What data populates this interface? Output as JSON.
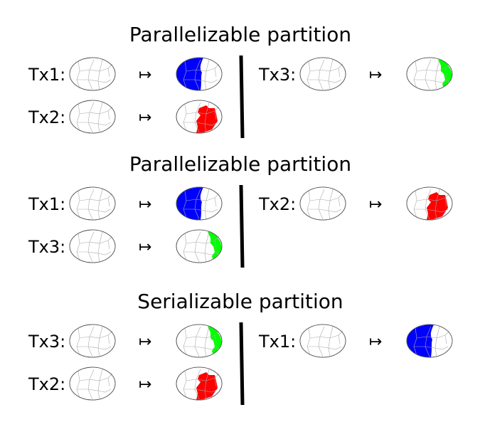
{
  "arrow_symbol": "↦",
  "colors": {
    "Tx1": "#0000ff",
    "Tx2": "#ff0000",
    "Tx3": "#00ff00"
  },
  "sections": [
    {
      "title": "Parallelizable partition",
      "left": [
        {
          "label": "Tx1:",
          "tx": "Tx1"
        },
        {
          "label": "Tx2:",
          "tx": "Tx2"
        }
      ],
      "right": [
        {
          "label": "Tx3:",
          "tx": "Tx3"
        }
      ]
    },
    {
      "title": "Parallelizable partition",
      "left": [
        {
          "label": "Tx1:",
          "tx": "Tx1"
        },
        {
          "label": "Tx3:",
          "tx": "Tx3"
        }
      ],
      "right": [
        {
          "label": "Tx2:",
          "tx": "Tx2"
        }
      ]
    },
    {
      "title": "Serializable partition",
      "left": [
        {
          "label": "Tx3:",
          "tx": "Tx3"
        },
        {
          "label": "Tx2:",
          "tx": "Tx2"
        }
      ],
      "right": [
        {
          "label": "Tx1:",
          "tx": "Tx1"
        }
      ]
    }
  ]
}
